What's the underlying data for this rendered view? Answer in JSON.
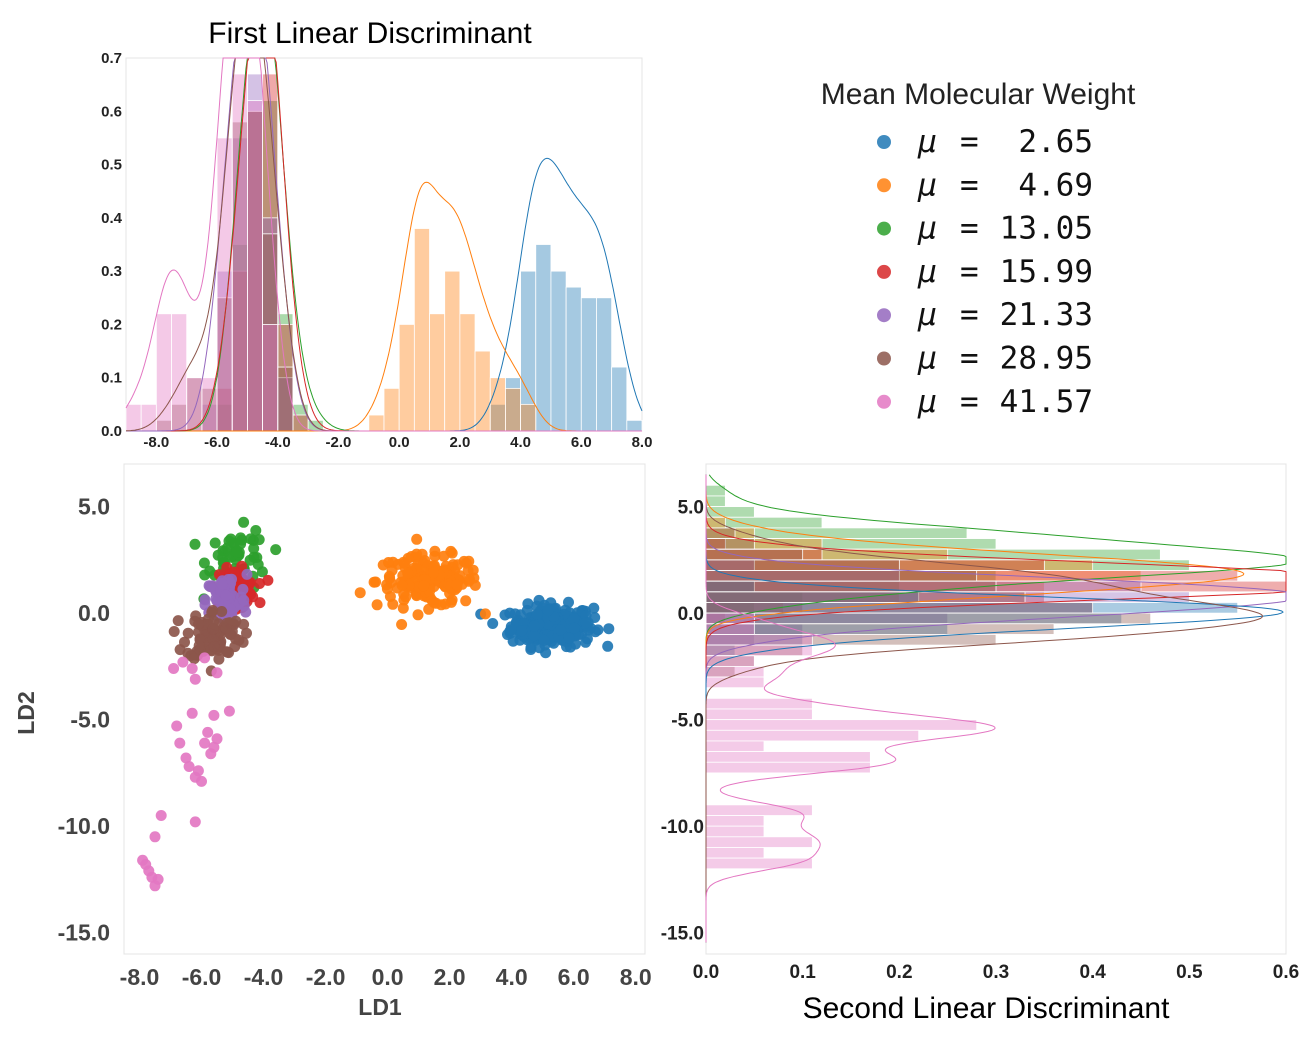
{
  "chart_data": [
    {
      "panel": "top-histogram",
      "type": "bar",
      "title": "First Linear Discriminant",
      "x_tick_labels": [
        "-8.0",
        "-6.0",
        "-4.0",
        "-2.0",
        "0.0",
        "2.0",
        "4.0",
        "6.0",
        "8.0"
      ],
      "y_tick_labels": [
        "0.0",
        "0.1",
        "0.2",
        "0.3",
        "0.4",
        "0.5",
        "0.6",
        "0.7"
      ],
      "xlim": [
        -9,
        8
      ],
      "ylim": [
        0,
        0.7
      ],
      "bin_width": 0.5,
      "series": [
        {
          "color": "#1f77b4",
          "bins": [
            [
              3.0,
              0.05
            ],
            [
              3.5,
              0.1
            ],
            [
              4.0,
              0.3
            ],
            [
              4.5,
              0.35
            ],
            [
              5.0,
              0.3
            ],
            [
              5.5,
              0.27
            ],
            [
              6.0,
              0.25
            ],
            [
              6.5,
              0.25
            ],
            [
              7.0,
              0.12
            ],
            [
              7.5,
              0.02
            ]
          ]
        },
        {
          "color": "#ff7f0e",
          "bins": [
            [
              -1.0,
              0.03
            ],
            [
              -0.5,
              0.08
            ],
            [
              0.0,
              0.2
            ],
            [
              0.5,
              0.38
            ],
            [
              1.0,
              0.22
            ],
            [
              1.5,
              0.3
            ],
            [
              2.0,
              0.22
            ],
            [
              2.5,
              0.15
            ],
            [
              3.0,
              0.1
            ],
            [
              3.5,
              0.08
            ],
            [
              4.0,
              0.05
            ]
          ]
        },
        {
          "color": "#2ca02c",
          "bins": [
            [
              -6.0,
              0.05
            ],
            [
              -5.5,
              0.35
            ],
            [
              -5.0,
              0.6
            ],
            [
              -4.5,
              0.62
            ],
            [
              -4.0,
              0.22
            ],
            [
              -3.5,
              0.05
            ],
            [
              -3.0,
              0.02
            ]
          ]
        },
        {
          "color": "#d62728",
          "bins": [
            [
              -6.0,
              0.08
            ],
            [
              -5.5,
              0.3
            ],
            [
              -5.0,
              0.6
            ],
            [
              -4.5,
              0.67
            ],
            [
              -4.0,
              0.2
            ],
            [
              -3.5,
              0.03
            ]
          ]
        },
        {
          "color": "#9467bd",
          "bins": [
            [
              -6.5,
              0.05
            ],
            [
              -6.0,
              0.3
            ],
            [
              -5.5,
              0.55
            ],
            [
              -5.0,
              0.67
            ],
            [
              -4.5,
              0.4
            ],
            [
              -4.0,
              0.1
            ]
          ]
        },
        {
          "color": "#8c564b",
          "bins": [
            [
              -8.0,
              0.02
            ],
            [
              -7.5,
              0.05
            ],
            [
              -7.0,
              0.1
            ],
            [
              -6.5,
              0.08
            ],
            [
              -6.0,
              0.25
            ],
            [
              -5.5,
              0.58
            ],
            [
              -5.0,
              0.6
            ],
            [
              -4.5,
              0.37
            ],
            [
              -4.0,
              0.12
            ]
          ]
        },
        {
          "color": "#e377c2",
          "bins": [
            [
              -9.0,
              0.05
            ],
            [
              -8.5,
              0.05
            ],
            [
              -8.0,
              0.22
            ],
            [
              -7.5,
              0.22
            ],
            [
              -7.0,
              0.1
            ],
            [
              -6.5,
              0.1
            ],
            [
              -6.0,
              0.55
            ],
            [
              -5.5,
              0.67
            ],
            [
              -5.0,
              0.62
            ],
            [
              -4.5,
              0.2
            ]
          ]
        }
      ]
    },
    {
      "panel": "legend",
      "title": "Mean Molecular Weight",
      "symbol": "μ",
      "eq": "=",
      "entries": [
        {
          "value": "2.65",
          "color": "#1f77b4"
        },
        {
          "value": "4.69",
          "color": "#ff7f0e"
        },
        {
          "value": "13.05",
          "color": "#2ca02c"
        },
        {
          "value": "15.99",
          "color": "#d62728"
        },
        {
          "value": "21.33",
          "color": "#9467bd"
        },
        {
          "value": "28.95",
          "color": "#8c564b"
        },
        {
          "value": "41.57",
          "color": "#e377c2"
        }
      ]
    },
    {
      "panel": "scatter",
      "type": "scatter",
      "xlabel": "LD1",
      "ylabel": "LD2",
      "x_tick_labels": [
        "-8.0",
        "-6.0",
        "-4.0",
        "-2.0",
        "0.0",
        "2.0",
        "4.0",
        "6.0",
        "8.0"
      ],
      "y_tick_labels": [
        "5.0",
        "0.0",
        "-5.0",
        "-10.0",
        "-15.0"
      ],
      "xlim": [
        -8.5,
        8.3
      ],
      "ylim": [
        -16,
        7
      ],
      "series": [
        {
          "color": "#1f77b4",
          "center": [
            5.3,
            -0.6
          ],
          "spread": [
            1.2,
            0.8
          ],
          "n": 260
        },
        {
          "color": "#ff7f0e",
          "center": [
            1.3,
            1.5
          ],
          "spread": [
            1.5,
            1.0
          ],
          "n": 170
        },
        {
          "color": "#2ca02c",
          "center": [
            -4.8,
            2.5
          ],
          "spread": [
            0.9,
            1.2
          ],
          "n": 60
        },
        {
          "color": "#d62728",
          "center": [
            -4.9,
            1.2
          ],
          "spread": [
            0.6,
            0.7
          ],
          "n": 80
        },
        {
          "color": "#9467bd",
          "center": [
            -5.2,
            0.6
          ],
          "spread": [
            0.6,
            1.0
          ],
          "n": 70
        },
        {
          "color": "#8c564b",
          "center": [
            -5.6,
            -1.0
          ],
          "spread": [
            0.8,
            1.0
          ],
          "n": 90
        },
        {
          "color": "#e377c2",
          "points": [
            [
              -5.1,
              -4.6
            ],
            [
              -5.6,
              -4.8
            ],
            [
              -6.3,
              -4.7
            ],
            [
              -6.8,
              -5.3
            ],
            [
              -5.8,
              -5.6
            ],
            [
              -5.5,
              -5.9
            ],
            [
              -5.9,
              -6.1
            ],
            [
              -6.7,
              -6.1
            ],
            [
              -5.6,
              -6.3
            ],
            [
              -5.7,
              -6.6
            ],
            [
              -6.5,
              -6.8
            ],
            [
              -6.4,
              -7.2
            ],
            [
              -6.1,
              -7.4
            ],
            [
              -6.2,
              -7.7
            ],
            [
              -6.0,
              -7.9
            ],
            [
              -7.3,
              -9.5
            ],
            [
              -6.2,
              -9.8
            ],
            [
              -7.5,
              -10.5
            ],
            [
              -7.9,
              -11.6
            ],
            [
              -7.8,
              -11.8
            ],
            [
              -7.7,
              -12.1
            ],
            [
              -7.6,
              -12.4
            ],
            [
              -7.4,
              -12.5
            ],
            [
              -7.5,
              -12.8
            ],
            [
              -6.6,
              -2.3
            ],
            [
              -6.3,
              -2.6
            ],
            [
              -5.9,
              -2.1
            ],
            [
              -5.5,
              -2.8
            ],
            [
              -6.9,
              -2.6
            ],
            [
              -6.2,
              -3.1
            ]
          ]
        }
      ]
    },
    {
      "panel": "right-histogram",
      "type": "bar",
      "orientation": "horizontal",
      "xlabel": "Second Linear Discriminant",
      "x_tick_labels": [
        "0.0",
        "0.1",
        "0.2",
        "0.3",
        "0.4",
        "0.5",
        "0.6"
      ],
      "y_tick_labels": [
        "5.0",
        "0.0",
        "-5.0",
        "-10.0",
        "-15.0"
      ],
      "xlim": [
        0,
        0.6
      ],
      "ylim": [
        -16,
        7
      ],
      "bin_height": 0.5,
      "series": [
        {
          "color": "#2ca02c",
          "bins": [
            [
              5.5,
              0.02
            ],
            [
              5.0,
              0.02
            ],
            [
              4.5,
              0.05
            ],
            [
              4.0,
              0.12
            ],
            [
              3.5,
              0.27
            ],
            [
              3.0,
              0.3
            ],
            [
              2.5,
              0.47
            ],
            [
              2.0,
              0.5
            ],
            [
              1.5,
              0.3
            ],
            [
              1.0,
              0.2
            ],
            [
              0.5,
              0.1
            ],
            [
              0.0,
              0.05
            ]
          ]
        },
        {
          "color": "#ff7f0e",
          "bins": [
            [
              4.0,
              0.02
            ],
            [
              3.5,
              0.05
            ],
            [
              3.0,
              0.12
            ],
            [
              2.5,
              0.25
            ],
            [
              2.0,
              0.4
            ],
            [
              1.5,
              0.45
            ],
            [
              1.0,
              0.35
            ],
            [
              0.5,
              0.2
            ],
            [
              0.0,
              0.08
            ]
          ]
        },
        {
          "color": "#d62728",
          "bins": [
            [
              3.0,
              0.02
            ],
            [
              2.5,
              0.12
            ],
            [
              2.0,
              0.35
            ],
            [
              1.5,
              0.55
            ],
            [
              1.0,
              0.6
            ],
            [
              0.5,
              0.35
            ],
            [
              0.0,
              0.1
            ],
            [
              -0.5,
              0.02
            ]
          ]
        },
        {
          "color": "#9467bd",
          "bins": [
            [
              2.0,
              0.05
            ],
            [
              1.5,
              0.2
            ],
            [
              1.0,
              0.45
            ],
            [
              0.5,
              0.5
            ],
            [
              0.0,
              0.4
            ],
            [
              -0.5,
              0.25
            ],
            [
              -1.0,
              0.1
            ],
            [
              -1.5,
              0.05
            ]
          ]
        },
        {
          "color": "#1f77b4",
          "bins": [
            [
              1.0,
              0.05
            ],
            [
              0.5,
              0.22
            ],
            [
              0.0,
              0.55
            ],
            [
              -0.5,
              0.43
            ],
            [
              -1.0,
              0.25
            ],
            [
              -1.5,
              0.1
            ],
            [
              -2.0,
              0.03
            ]
          ]
        },
        {
          "color": "#8c564b",
          "bins": [
            [
              3.5,
              0.03
            ],
            [
              3.0,
              0.05
            ],
            [
              2.5,
              0.1
            ],
            [
              2.0,
              0.2
            ],
            [
              1.5,
              0.28
            ],
            [
              1.0,
              0.3
            ],
            [
              0.5,
              0.33
            ],
            [
              0.0,
              0.4
            ],
            [
              -0.5,
              0.46
            ],
            [
              -1.0,
              0.36
            ],
            [
              -1.5,
              0.3
            ],
            [
              -2.0,
              0.1
            ],
            [
              -2.5,
              0.05
            ],
            [
              -3.0,
              0.03
            ]
          ]
        },
        {
          "color": "#e377c2",
          "bins": [
            [
              -0.5,
              0.05
            ],
            [
              -1.0,
              0.05
            ],
            [
              -1.5,
              0.11
            ],
            [
              -2.0,
              0.11
            ],
            [
              -2.5,
              0.05
            ],
            [
              -3.0,
              0.06
            ],
            [
              -3.5,
              0.06
            ],
            [
              -4.5,
              0.11
            ],
            [
              -5.0,
              0.11
            ],
            [
              -5.5,
              0.28
            ],
            [
              -6.0,
              0.22
            ],
            [
              -6.5,
              0.06
            ],
            [
              -7.0,
              0.17
            ],
            [
              -7.5,
              0.17
            ],
            [
              -9.5,
              0.11
            ],
            [
              -10.0,
              0.06
            ],
            [
              -10.5,
              0.06
            ],
            [
              -11.0,
              0.11
            ],
            [
              -11.5,
              0.06
            ],
            [
              -12.0,
              0.11
            ]
          ]
        }
      ]
    }
  ]
}
